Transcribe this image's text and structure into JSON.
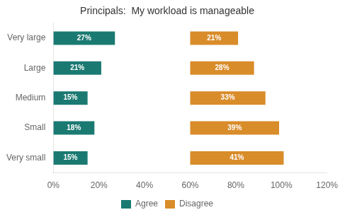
{
  "chart_data": {
    "type": "bar",
    "orientation": "horizontal",
    "title": "Principals:  My workload is manageable",
    "categories": [
      "Very large",
      "Large",
      "Medium",
      "Small",
      "Very small"
    ],
    "series": [
      {
        "name": "Agree",
        "color": "#1a7a72",
        "values": [
          27,
          21,
          15,
          18,
          15
        ],
        "value_labels": [
          "27%",
          "21%",
          "15%",
          "18%",
          "15%"
        ]
      },
      {
        "name": "Disagree",
        "color": "#d98c2a",
        "start": 60,
        "values": [
          21,
          28,
          33,
          39,
          41
        ],
        "value_labels": [
          "21%",
          "28%",
          "33%",
          "39%",
          "41%"
        ]
      }
    ],
    "xlim": [
      0,
      120
    ],
    "xticks": [
      {
        "value": 0,
        "label": "0%"
      },
      {
        "value": 20,
        "label": "20%"
      },
      {
        "value": 40,
        "label": "40%"
      },
      {
        "value": 60,
        "label": "60%"
      },
      {
        "value": 80,
        "label": "80%"
      },
      {
        "value": 100,
        "label": "100%"
      },
      {
        "value": 120,
        "label": "120%"
      }
    ],
    "grid": false,
    "legend": "bottom",
    "data_labels": true
  }
}
